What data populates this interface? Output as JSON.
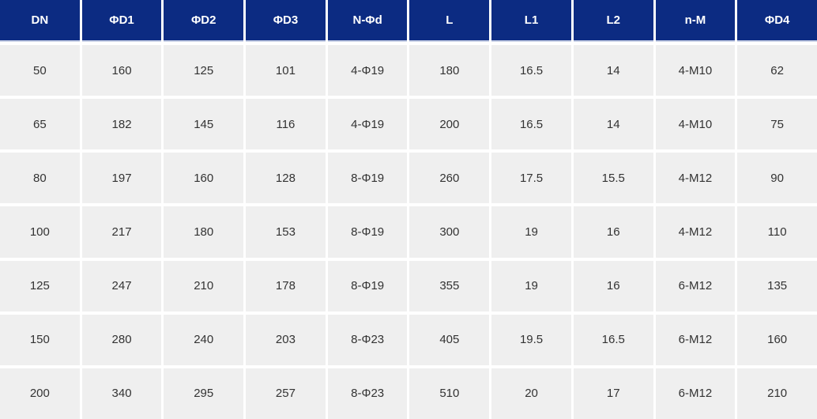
{
  "chart_data": {
    "type": "table",
    "title": "",
    "columns": [
      "DN",
      "ΦD1",
      "ΦD2",
      "ΦD3",
      "N-Φd",
      "L",
      "L1",
      "L2",
      "n-M",
      "ΦD4"
    ],
    "rows": [
      [
        "50",
        "160",
        "125",
        "101",
        "4-Φ19",
        "180",
        "16.5",
        "14",
        "4-M10",
        "62"
      ],
      [
        "65",
        "182",
        "145",
        "116",
        "4-Φ19",
        "200",
        "16.5",
        "14",
        "4-M10",
        "75"
      ],
      [
        "80",
        "197",
        "160",
        "128",
        "8-Φ19",
        "260",
        "17.5",
        "15.5",
        "4-M12",
        "90"
      ],
      [
        "100",
        "217",
        "180",
        "153",
        "8-Φ19",
        "300",
        "19",
        "16",
        "4-M12",
        "110"
      ],
      [
        "125",
        "247",
        "210",
        "178",
        "8-Φ19",
        "355",
        "19",
        "16",
        "6-M12",
        "135"
      ],
      [
        "150",
        "280",
        "240",
        "203",
        "8-Φ23",
        "405",
        "19.5",
        "16.5",
        "6-M12",
        "160"
      ],
      [
        "200",
        "340",
        "295",
        "257",
        "8-Φ23",
        "510",
        "20",
        "17",
        "6-M12",
        "210"
      ]
    ]
  },
  "colors": {
    "header_bg": "#0c2b82",
    "header_text": "#ffffff",
    "header_underline": "#ccd4e8",
    "cell_bg": "#efefef",
    "cell_text": "#333333",
    "gap": "#ffffff"
  }
}
